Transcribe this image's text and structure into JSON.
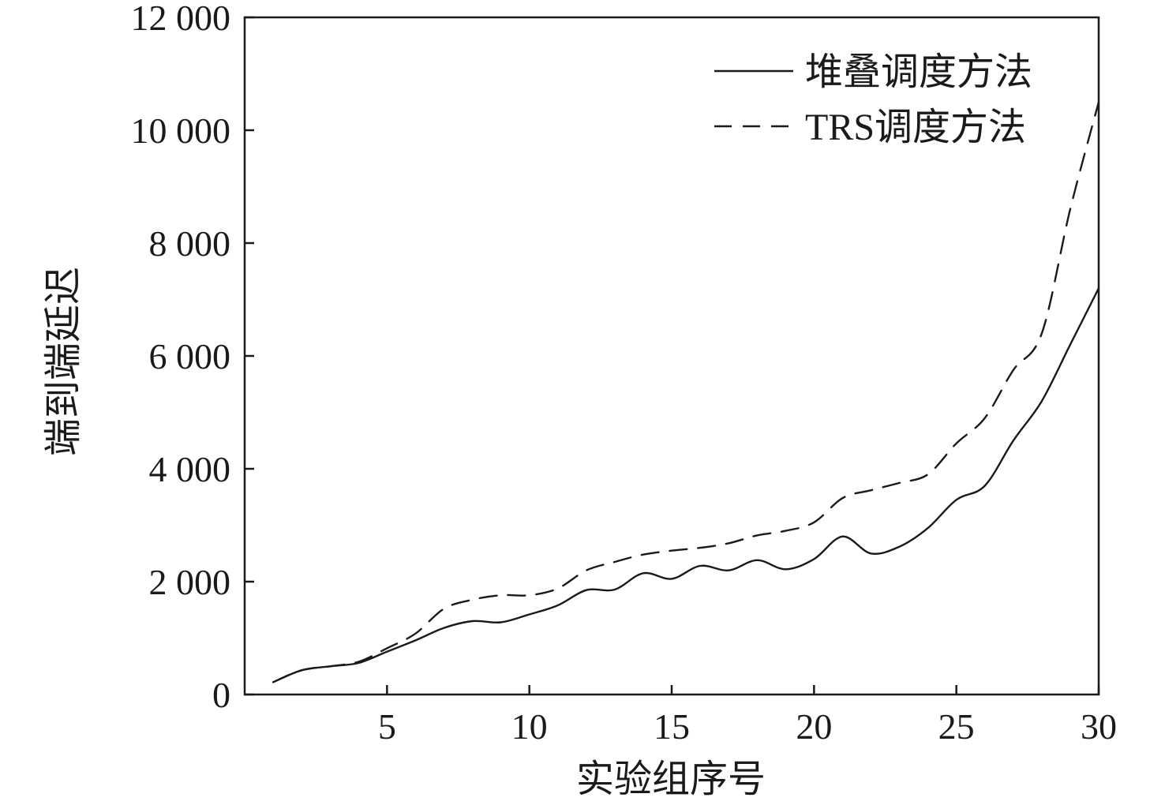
{
  "chart_data": {
    "type": "line",
    "title": "",
    "xlabel": "实验组序号",
    "ylabel": "端到端延迟",
    "xlim": [
      0,
      30
    ],
    "ylim": [
      0,
      12000
    ],
    "xticks": [
      5,
      10,
      15,
      20,
      25,
      30
    ],
    "xtick_labels": [
      "5",
      "10",
      "15",
      "20",
      "25",
      "30"
    ],
    "yticks": [
      0,
      2000,
      4000,
      6000,
      8000,
      10000,
      12000
    ],
    "ytick_labels": [
      "0",
      "2 000",
      "4 000",
      "6 000",
      "8 000",
      "10 000",
      "12 000"
    ],
    "grid": false,
    "legend_position": "top-right",
    "x": [
      1,
      2,
      3,
      4,
      5,
      6,
      7,
      8,
      9,
      10,
      11,
      12,
      13,
      14,
      15,
      16,
      17,
      18,
      19,
      20,
      21,
      22,
      23,
      24,
      25,
      26,
      27,
      28,
      29,
      30
    ],
    "series": [
      {
        "name": "堆叠调度方法",
        "dash": "solid",
        "color": "#1a1a1a",
        "values": [
          220,
          430,
          500,
          560,
          760,
          960,
          1180,
          1300,
          1280,
          1420,
          1580,
          1850,
          1860,
          2150,
          2050,
          2280,
          2200,
          2380,
          2220,
          2400,
          2800,
          2500,
          2620,
          2950,
          3450,
          3700,
          4500,
          5200,
          6200,
          7200
        ]
      },
      {
        "name": "TRS调度方法",
        "dash": "dashed",
        "color": "#1a1a1a",
        "values": [
          220,
          430,
          500,
          580,
          820,
          1080,
          1520,
          1680,
          1760,
          1760,
          1880,
          2200,
          2350,
          2480,
          2550,
          2600,
          2680,
          2820,
          2900,
          3050,
          3480,
          3620,
          3750,
          3900,
          4450,
          4900,
          5750,
          6400,
          8600,
          10500
        ]
      }
    ]
  }
}
